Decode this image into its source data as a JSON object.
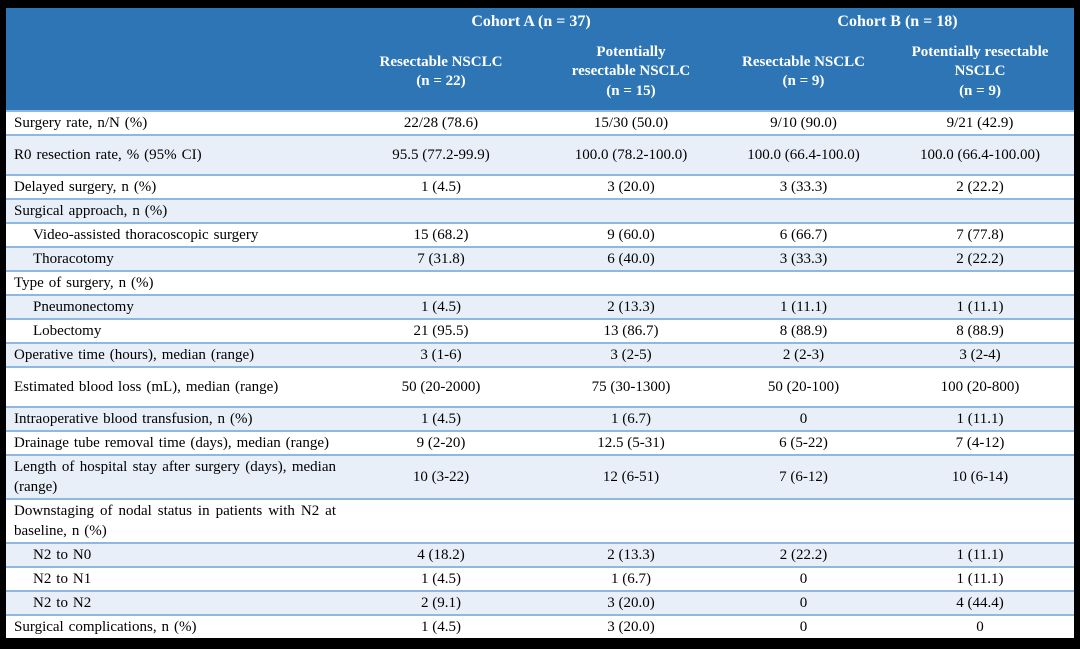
{
  "colors": {
    "header_bg": "#2E75B6",
    "header_text": "#FFFFFF",
    "row_shade": "#E9EFF8",
    "row_border": "#8FB8E0",
    "frame": "#000000",
    "body_text": "#000000"
  },
  "header": {
    "cohort_a": "Cohort A (n = 37)",
    "cohort_b": "Cohort B (n = 18)",
    "subcolumns": [
      "Resectable NSCLC\n(n = 22)",
      "Potentially\nresectable NSCLC\n(n = 15)",
      "Resectable NSCLC\n(n = 9)",
      "Potentially resectable\nNSCLC\n(n = 9)"
    ]
  },
  "rows": [
    {
      "label": "Surgery rate, n/N (%)",
      "indent": false,
      "section": false,
      "tall": false,
      "values": [
        "22/28 (78.6)",
        "15/30 (50.0)",
        "9/10 (90.0)",
        "9/21 (42.9)"
      ]
    },
    {
      "label": "R0 resection rate, % (95% CI)",
      "indent": false,
      "section": false,
      "tall": true,
      "values": [
        "95.5 (77.2-99.9)",
        "100.0 (78.2-100.0)",
        "100.0 (66.4-100.0)",
        "100.0 (66.4-100.00)"
      ]
    },
    {
      "label": "Delayed surgery, n (%)",
      "indent": false,
      "section": false,
      "tall": false,
      "values": [
        "1 (4.5)",
        "3 (20.0)",
        "3 (33.3)",
        "2 (22.2)"
      ]
    },
    {
      "label": "Surgical approach, n (%)",
      "indent": false,
      "section": true,
      "tall": false,
      "values": [
        "",
        "",
        "",
        ""
      ]
    },
    {
      "label": "Video-assisted thoracoscopic surgery",
      "indent": true,
      "section": false,
      "tall": false,
      "values": [
        "15 (68.2)",
        "9 (60.0)",
        "6 (66.7)",
        "7 (77.8)"
      ]
    },
    {
      "label": "Thoracotomy",
      "indent": true,
      "section": false,
      "tall": false,
      "values": [
        "7 (31.8)",
        "6 (40.0)",
        "3 (33.3)",
        "2 (22.2)"
      ]
    },
    {
      "label": "Type of surgery, n (%)",
      "indent": false,
      "section": true,
      "tall": false,
      "values": [
        "",
        "",
        "",
        ""
      ]
    },
    {
      "label": "Pneumonectomy",
      "indent": true,
      "section": false,
      "tall": false,
      "values": [
        "1 (4.5)",
        "2 (13.3)",
        "1 (11.1)",
        "1 (11.1)"
      ]
    },
    {
      "label": "Lobectomy",
      "indent": true,
      "section": false,
      "tall": false,
      "values": [
        "21 (95.5)",
        "13 (86.7)",
        "8 (88.9)",
        "8 (88.9)"
      ]
    },
    {
      "label": "Operative time (hours), median (range)",
      "indent": false,
      "section": false,
      "tall": false,
      "values": [
        "3 (1-6)",
        "3 (2-5)",
        "2 (2-3)",
        "3 (2-4)"
      ]
    },
    {
      "label": "Estimated blood loss (mL), median (range)",
      "indent": false,
      "section": false,
      "tall": true,
      "values": [
        "50 (20-2000)",
        "75 (30-1300)",
        "50 (20-100)",
        "100 (20-800)"
      ]
    },
    {
      "label": "Intraoperative blood transfusion, n (%)",
      "indent": false,
      "section": false,
      "tall": false,
      "values": [
        "1 (4.5)",
        "1 (6.7)",
        "0",
        "1 (11.1)"
      ]
    },
    {
      "label": "Drainage tube removal time (days), median (range)",
      "indent": false,
      "section": false,
      "tall": false,
      "values": [
        "9 (2-20)",
        "12.5 (5-31)",
        "6 (5-22)",
        "7 (4-12)"
      ]
    },
    {
      "label": "Length of hospital stay after surgery (days), median (range)",
      "indent": false,
      "section": false,
      "tall": false,
      "values": [
        "10 (3-22)",
        "12 (6-51)",
        "7 (6-12)",
        "10 (6-14)"
      ]
    },
    {
      "label": "Downstaging of nodal status in patients with N2 at baseline, n (%)",
      "indent": false,
      "section": true,
      "tall": false,
      "values": [
        "",
        "",
        "",
        ""
      ]
    },
    {
      "label": "N2 to N0",
      "indent": true,
      "section": false,
      "tall": false,
      "values": [
        "4 (18.2)",
        "2 (13.3)",
        "2 (22.2)",
        "1 (11.1)"
      ]
    },
    {
      "label": "N2 to N1",
      "indent": true,
      "section": false,
      "tall": false,
      "values": [
        "1 (4.5)",
        "1 (6.7)",
        "0",
        "1 (11.1)"
      ]
    },
    {
      "label": "N2 to N2",
      "indent": true,
      "section": false,
      "tall": false,
      "values": [
        "2 (9.1)",
        "3 (20.0)",
        "0",
        "4 (44.4)"
      ]
    },
    {
      "label": "Surgical complications, n (%)",
      "indent": false,
      "section": false,
      "tall": false,
      "values": [
        "1 (4.5)",
        "3 (20.0)",
        "0",
        "0"
      ]
    }
  ]
}
